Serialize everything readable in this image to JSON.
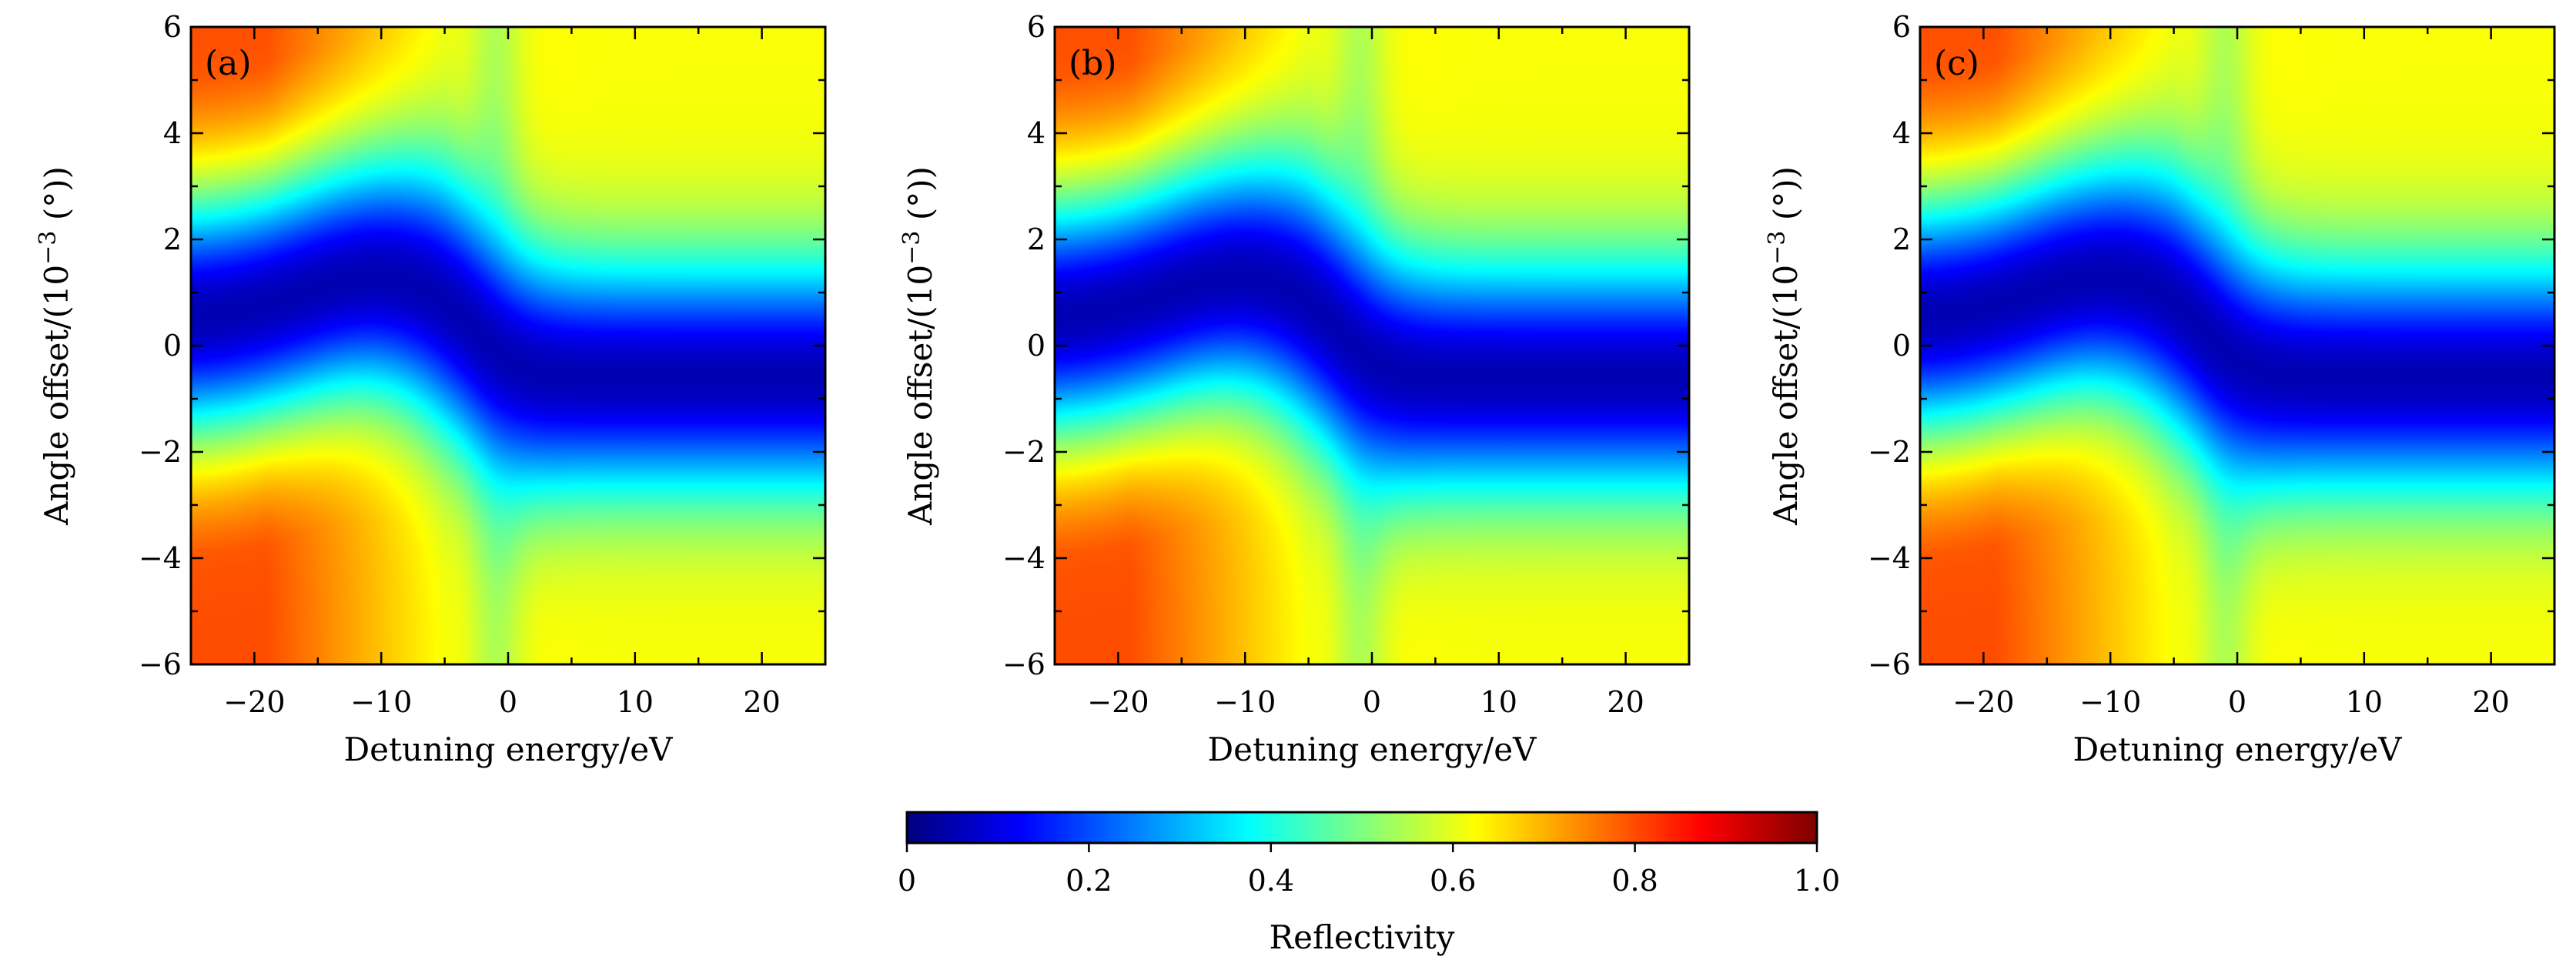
{
  "chart_data": [
    {
      "type": "heatmap",
      "panel_label": "(a)",
      "xlabel": "Detuning energy/eV",
      "ylabel": "Angle offset/(10^-3 (°))",
      "xlim": [
        -25,
        25
      ],
      "ylim": [
        -6,
        6
      ],
      "x_ticks": [
        -20,
        -10,
        0,
        10,
        20
      ],
      "y_ticks": [
        -6,
        -4,
        -2,
        0,
        2,
        4,
        6
      ],
      "x_tick_labels": [
        "−20",
        "−10",
        "0",
        "10",
        "20"
      ],
      "y_tick_labels": [
        "−6",
        "−4",
        "−2",
        "0",
        "2",
        "4",
        "6"
      ],
      "value_range": [
        0,
        1
      ],
      "features": {
        "resonance_center_y_left": 0.5,
        "resonance_center_y_right": -0.6,
        "transition_energy": -2,
        "min_reflectivity": 0.05,
        "max_reflectivity": 0.8
      }
    },
    {
      "type": "heatmap",
      "panel_label": "(b)",
      "xlabel": "Detuning energy/eV",
      "ylabel": "Angle offset/(10^-3 (°))",
      "xlim": [
        -25,
        25
      ],
      "ylim": [
        -6,
        6
      ],
      "x_ticks": [
        -20,
        -10,
        0,
        10,
        20
      ],
      "y_ticks": [
        -6,
        -4,
        -2,
        0,
        2,
        4,
        6
      ],
      "x_tick_labels": [
        "−20",
        "−10",
        "0",
        "10",
        "20"
      ],
      "y_tick_labels": [
        "−6",
        "−4",
        "−2",
        "0",
        "2",
        "4",
        "6"
      ],
      "value_range": [
        0,
        1
      ],
      "features": {
        "resonance_center_y_left": 0.5,
        "resonance_center_y_right": -0.6,
        "transition_energy": -2,
        "min_reflectivity": 0.05,
        "max_reflectivity": 0.8
      }
    },
    {
      "type": "heatmap",
      "panel_label": "(c)",
      "xlabel": "Detuning energy/eV",
      "ylabel": "Angle offset/(10^-3 (°))",
      "xlim": [
        -25,
        25
      ],
      "ylim": [
        -6,
        6
      ],
      "x_ticks": [
        -20,
        -10,
        0,
        10,
        20
      ],
      "y_ticks": [
        -6,
        -4,
        -2,
        0,
        2,
        4,
        6
      ],
      "x_tick_labels": [
        "−20",
        "−10",
        "0",
        "10",
        "20"
      ],
      "y_tick_labels": [
        "−6",
        "−4",
        "−2",
        "0",
        "2",
        "4",
        "6"
      ],
      "value_range": [
        0,
        1
      ],
      "features": {
        "resonance_center_y_left": 0.5,
        "resonance_center_y_right": -0.6,
        "transition_energy": -2,
        "min_reflectivity": 0.05,
        "max_reflectivity": 0.8
      }
    }
  ],
  "colorbar": {
    "label": "Reflectivity",
    "colormap": "jet",
    "range": [
      0,
      1
    ],
    "ticks": [
      0,
      0.2,
      0.4,
      0.6,
      0.8,
      1.0
    ],
    "tick_labels": [
      "0",
      "0.2",
      "0.4",
      "0.6",
      "0.8",
      "1.0"
    ]
  }
}
